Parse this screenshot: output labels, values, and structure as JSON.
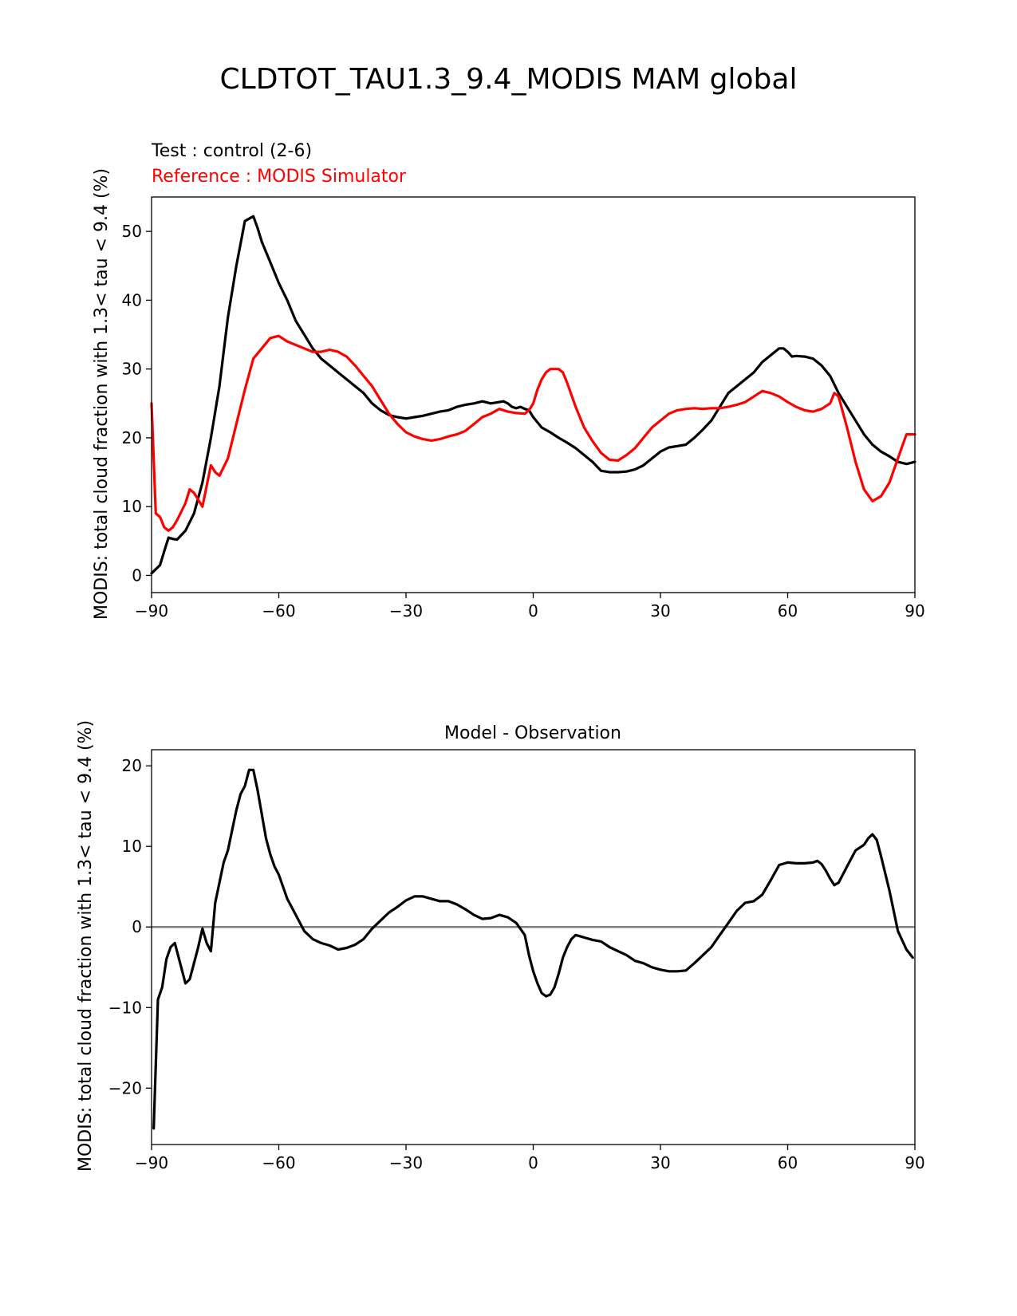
{
  "figure_title": "CLDTOT_TAU1.3_9.4_MODIS MAM global",
  "colors": {
    "test": "#000000",
    "reference": "#ff0000",
    "zero_line": "#808080"
  },
  "chart_data": [
    {
      "type": "line",
      "test_label": "Test : control (2-6)",
      "reference_label": "Reference : MODIS Simulator",
      "xlabel": "",
      "ylabel": "MODIS: total cloud fraction with 1.3< tau < 9.4 (%)",
      "xlim": [
        -90,
        90
      ],
      "ylim": [
        -2.5,
        55
      ],
      "xticks": [
        -90,
        -60,
        -30,
        0,
        30,
        60,
        90
      ],
      "xtick_labels": [
        "−90",
        "−60",
        "−30",
        "0",
        "30",
        "60",
        "90"
      ],
      "yticks": [
        0,
        10,
        20,
        30,
        40,
        50
      ],
      "ytick_labels": [
        "0",
        "10",
        "20",
        "30",
        "40",
        "50"
      ],
      "series": [
        {
          "name": "Test : control (2-6)",
          "color": "#000000",
          "x": [
            -90,
            -88,
            -87,
            -86,
            -85,
            -84,
            -82,
            -80,
            -78,
            -76,
            -74,
            -72,
            -70,
            -68,
            -66,
            -65,
            -64,
            -62,
            -60,
            -58,
            -56,
            -54,
            -52,
            -50,
            -48,
            -46,
            -44,
            -42,
            -40,
            -38,
            -36,
            -34,
            -32,
            -30,
            -28,
            -26,
            -24,
            -22,
            -20,
            -18,
            -16,
            -14,
            -12,
            -10,
            -8,
            -7,
            -6,
            -5,
            -4,
            -3,
            -2,
            -1,
            0,
            2,
            4,
            6,
            8,
            10,
            12,
            14,
            16,
            18,
            20,
            22,
            24,
            26,
            28,
            30,
            32,
            34,
            36,
            38,
            40,
            42,
            44,
            46,
            48,
            50,
            52,
            54,
            56,
            58,
            59,
            60,
            61,
            62,
            64,
            66,
            68,
            70,
            72,
            74,
            76,
            78,
            80,
            82,
            84,
            86,
            88,
            90
          ],
          "values": [
            0.3,
            1.5,
            3.5,
            5.5,
            5.3,
            5.2,
            6.5,
            9,
            13.5,
            20,
            27.5,
            37.5,
            45,
            51.5,
            52.2,
            50.5,
            48.5,
            45.5,
            42.5,
            40,
            37,
            35,
            33,
            31.5,
            30.5,
            29.5,
            28.5,
            27.5,
            26.5,
            25,
            24,
            23.3,
            23,
            22.8,
            23,
            23.2,
            23.5,
            23.8,
            24,
            24.5,
            24.8,
            25,
            25.3,
            25,
            25.2,
            25.3,
            25,
            24.5,
            24.3,
            24.5,
            24.2,
            24,
            23,
            21.5,
            20.8,
            20,
            19.3,
            18.5,
            17.5,
            16.5,
            15.2,
            15,
            15,
            15.1,
            15.4,
            16,
            17,
            18,
            18.6,
            18.8,
            19,
            20,
            21.2,
            22.5,
            24.5,
            26.5,
            27.5,
            28.5,
            29.5,
            31,
            32,
            33,
            33,
            32.5,
            31.8,
            31.9,
            31.8,
            31.5,
            30.5,
            29,
            26.5,
            24.5,
            22.5,
            20.5,
            19,
            18,
            17.3,
            16.5,
            16.2,
            16.5
          ]
        },
        {
          "name": "Reference : MODIS Simulator",
          "color": "#ff0000",
          "x": [
            -90,
            -89,
            -88,
            -87,
            -86,
            -85,
            -84,
            -82,
            -81,
            -80,
            -78,
            -77,
            -76,
            -75,
            -74,
            -72,
            -70,
            -68,
            -66,
            -64,
            -62,
            -60,
            -58,
            -56,
            -54,
            -52,
            -50,
            -48,
            -46,
            -44,
            -42,
            -40,
            -38,
            -36,
            -34,
            -32,
            -30,
            -28,
            -26,
            -24,
            -22,
            -20,
            -18,
            -16,
            -14,
            -12,
            -10,
            -8,
            -6,
            -4,
            -2,
            -1,
            0,
            1,
            2,
            3,
            4,
            6,
            7,
            8,
            10,
            12,
            14,
            16,
            18,
            20,
            22,
            24,
            26,
            28,
            30,
            32,
            34,
            36,
            38,
            40,
            42,
            44,
            46,
            48,
            50,
            52,
            54,
            56,
            58,
            60,
            62,
            64,
            66,
            68,
            70,
            71,
            72,
            74,
            76,
            78,
            80,
            82,
            84,
            86,
            88,
            90
          ],
          "values": [
            25,
            9,
            8.5,
            7,
            6.5,
            7,
            8,
            10.5,
            12.5,
            12,
            10,
            13,
            16,
            15,
            14.5,
            17,
            22,
            27,
            31.5,
            33,
            34.5,
            34.8,
            34,
            33.5,
            33,
            32.5,
            32.5,
            32.8,
            32.5,
            31.8,
            30.5,
            29,
            27.5,
            25.5,
            23.5,
            22,
            20.8,
            20.2,
            19.8,
            19.6,
            19.8,
            20.2,
            20.5,
            21,
            22,
            23,
            23.5,
            24.2,
            23.8,
            23.6,
            23.5,
            24,
            25,
            27,
            28.5,
            29.5,
            30,
            30,
            29.5,
            28,
            24.5,
            21.5,
            19.5,
            17.8,
            16.8,
            16.7,
            17.5,
            18.5,
            20,
            21.5,
            22.5,
            23.5,
            24,
            24.2,
            24.3,
            24.2,
            24.3,
            24.3,
            24.5,
            24.8,
            25.2,
            26,
            26.8,
            26.5,
            26,
            25.2,
            24.5,
            24,
            23.8,
            24.2,
            25,
            26.5,
            26,
            21.5,
            16.5,
            12.5,
            10.8,
            11.5,
            13.5,
            17,
            20.5,
            20.5
          ]
        }
      ]
    },
    {
      "type": "line",
      "title": "Model - Observation",
      "xlabel": "",
      "ylabel": "MODIS: total cloud fraction with 1.3< tau < 9.4 (%)",
      "xlim": [
        -90,
        90
      ],
      "ylim": [
        -27,
        22
      ],
      "xticks": [
        -90,
        -60,
        -30,
        0,
        30,
        60,
        90
      ],
      "xtick_labels": [
        "−90",
        "−60",
        "−30",
        "0",
        "30",
        "60",
        "90"
      ],
      "yticks": [
        -20,
        -10,
        0,
        10,
        20
      ],
      "ytick_labels": [
        "−20",
        "−10",
        "0",
        "10",
        "20"
      ],
      "zero_line": 0,
      "series": [
        {
          "name": "Model - Observation",
          "color": "#000000",
          "x": [
            -89.5,
            -88.5,
            -87.5,
            -86.5,
            -85.5,
            -84.5,
            -83,
            -82,
            -81,
            -80,
            -79,
            -78,
            -77,
            -76,
            -75,
            -74,
            -73,
            -72,
            -71,
            -70,
            -69,
            -68,
            -67,
            -66,
            -65,
            -64,
            -63,
            -62,
            -61,
            -60,
            -58,
            -56,
            -54,
            -52,
            -50,
            -48,
            -46,
            -44,
            -42,
            -40,
            -38,
            -36,
            -34,
            -32,
            -30,
            -28,
            -26,
            -24,
            -22,
            -20,
            -18,
            -16,
            -14,
            -12,
            -10,
            -8,
            -6,
            -4,
            -2,
            -1,
            0,
            1,
            2,
            3,
            4,
            5,
            6,
            7,
            8,
            9,
            10,
            12,
            14,
            16,
            18,
            20,
            22,
            24,
            26,
            28,
            30,
            32,
            34,
            36,
            38,
            40,
            42,
            44,
            46,
            48,
            50,
            52,
            54,
            56,
            58,
            60,
            62,
            64,
            66,
            67,
            68,
            69,
            70,
            71,
            72,
            74,
            76,
            78,
            79,
            80,
            81,
            82,
            84,
            86,
            88,
            89.5
          ],
          "values": [
            -25,
            -9,
            -7.5,
            -4,
            -2.5,
            -2,
            -5,
            -7,
            -6.5,
            -4.5,
            -2.5,
            -0.2,
            -2,
            -3,
            3,
            5.5,
            8,
            9.5,
            12,
            14.5,
            16.5,
            17.5,
            19.5,
            19.5,
            17,
            14,
            11,
            9,
            7.5,
            6.5,
            3.5,
            1.5,
            -0.5,
            -1.5,
            -2,
            -2.3,
            -2.8,
            -2.6,
            -2.2,
            -1.5,
            -0.2,
            0.8,
            1.8,
            2.5,
            3.3,
            3.8,
            3.8,
            3.5,
            3.2,
            3.2,
            2.8,
            2.2,
            1.5,
            1,
            1.1,
            1.5,
            1.2,
            0.5,
            -1,
            -3.5,
            -5.5,
            -7,
            -8.2,
            -8.6,
            -8.4,
            -7.5,
            -5.8,
            -3.8,
            -2.5,
            -1.5,
            -1,
            -1.3,
            -1.6,
            -1.8,
            -2.5,
            -3,
            -3.5,
            -4.2,
            -4.5,
            -5,
            -5.3,
            -5.5,
            -5.5,
            -5.4,
            -4.5,
            -3.5,
            -2.5,
            -1,
            0.5,
            2,
            3,
            3.2,
            4,
            5.8,
            7.7,
            8,
            7.9,
            7.9,
            8,
            8.2,
            7.8,
            7,
            6,
            5.2,
            5.5,
            7.5,
            9.5,
            10.2,
            11,
            11.5,
            10.8,
            8.8,
            4.5,
            -0.5,
            -2.8,
            -3.8
          ]
        }
      ]
    }
  ]
}
